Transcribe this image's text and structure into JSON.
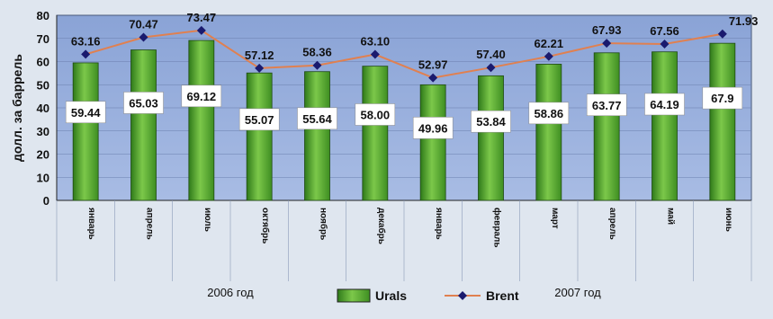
{
  "chart_data": {
    "type": "bar",
    "ylabel": "долл. за баррель",
    "ylim": [
      0,
      80
    ],
    "yticks": [
      0,
      10,
      20,
      30,
      40,
      50,
      60,
      70,
      80
    ],
    "categories": [
      "январь",
      "апрель",
      "июль",
      "октябрь",
      "ноябрь",
      "декабрь",
      "январь",
      "февраль",
      "март",
      "апрель",
      "май",
      "июнь"
    ],
    "year_groups": [
      {
        "label": "2006 год",
        "from": 0,
        "to": 5
      },
      {
        "label": "2007 год",
        "from": 6,
        "to": 11
      }
    ],
    "series": [
      {
        "name": "Urals",
        "kind": "bar",
        "color": "#4aa02c",
        "values": [
          59.44,
          65.03,
          69.12,
          55.07,
          55.64,
          58.0,
          49.96,
          53.84,
          58.86,
          63.77,
          64.19,
          67.9
        ],
        "labels": [
          "59.44",
          "65.03",
          "69.12",
          "55.07",
          "55.64",
          "58.00",
          "49.96",
          "53.84",
          "58.86",
          "63.77",
          "64.19",
          "67.9"
        ]
      },
      {
        "name": "Brent",
        "kind": "line",
        "color": "#e08050",
        "marker_color": "#1a1a6e",
        "values": [
          63.16,
          70.47,
          73.47,
          57.12,
          58.36,
          63.1,
          52.97,
          57.4,
          62.21,
          67.93,
          67.56,
          71.93
        ],
        "labels": [
          "63.16",
          "70.47",
          "73.47",
          "57.12",
          "58.36",
          "63.10",
          "52.97",
          "57.40",
          "62.21",
          "67.93",
          "67.56",
          "71.93"
        ]
      }
    ],
    "legend_position": "bottom"
  }
}
